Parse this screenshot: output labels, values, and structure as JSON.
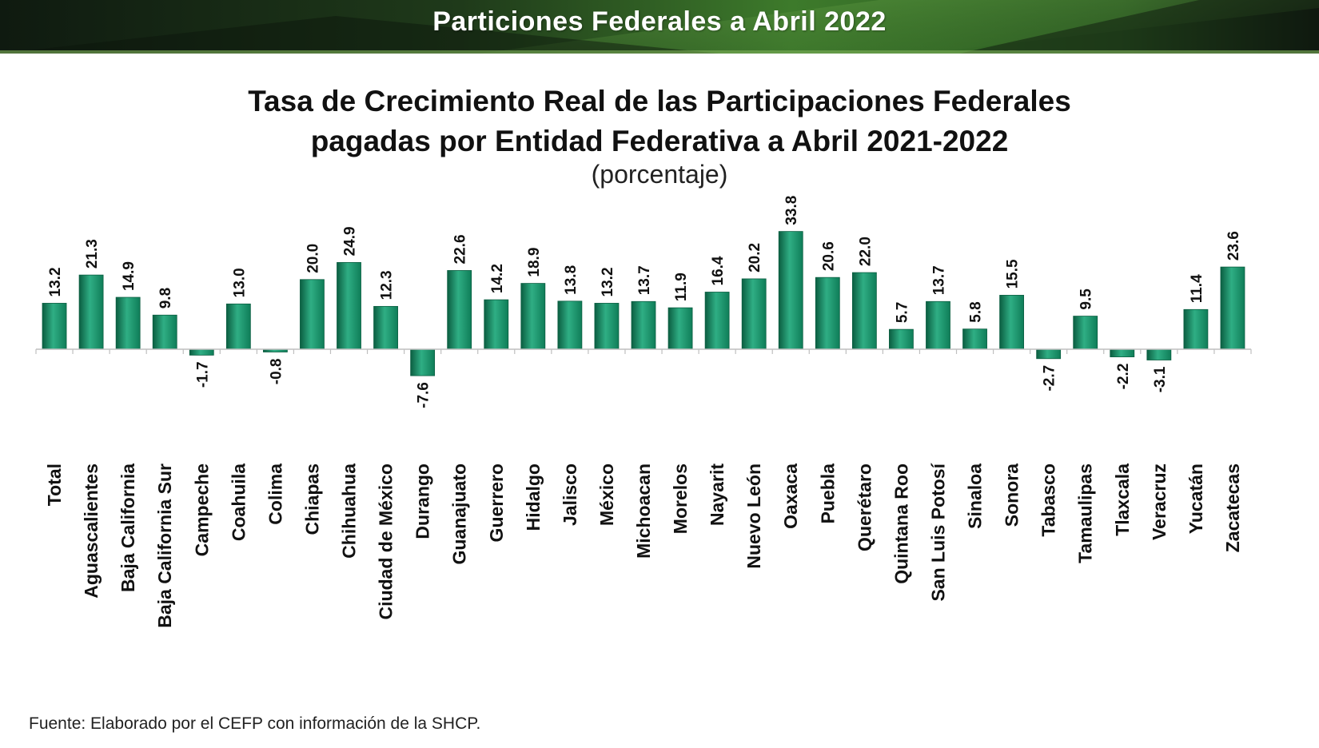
{
  "header": {
    "banner_title": "Particiones Federales a Abril 2022"
  },
  "colors": {
    "bar_light": "#2fae84",
    "bar_mid": "#0f7d58",
    "bar_dark": "#0b5e41",
    "banner_dark": "#1b2a1b",
    "banner_green": "#3f7d2c"
  },
  "footer": {
    "source": "Fuente: Elaborado por el CEFP con información de la SHCP."
  },
  "chart_data": {
    "type": "bar",
    "title_line1": "Tasa de Crecimiento Real de las Participaciones Federales",
    "title_line2": "pagadas por Entidad Federativa a Abril 2021-2022",
    "subtitle": "(porcentaje)",
    "xlabel": "",
    "ylabel": "",
    "ylim": [
      -12,
      36
    ],
    "grid": false,
    "categories": [
      "Total",
      "Aguascalientes",
      "Baja California",
      "Baja California Sur",
      "Campeche",
      "Coahuila",
      "Colima",
      "Chiapas",
      "Chihuahua",
      "Ciudad de México",
      "Durango",
      "Guanajuato",
      "Guerrero",
      "Hidalgo",
      "Jalisco",
      "México",
      "Michoacan",
      "Morelos",
      "Nayarit",
      "Nuevo León",
      "Oaxaca",
      "Puebla",
      "Querétaro",
      "Quintana Roo",
      "San Luis Potosí",
      "Sinaloa",
      "Sonora",
      "Tabasco",
      "Tamaulipas",
      "Tlaxcala",
      "Veracruz",
      "Yucatán",
      "Zacatecas"
    ],
    "values": [
      13.2,
      21.3,
      14.9,
      9.8,
      -1.7,
      13.0,
      -0.8,
      20.0,
      24.9,
      12.3,
      -7.6,
      22.6,
      14.2,
      18.9,
      13.8,
      13.2,
      13.7,
      11.9,
      16.4,
      20.2,
      33.8,
      20.6,
      22.0,
      5.7,
      13.7,
      5.8,
      15.5,
      -2.7,
      9.5,
      -2.2,
      -3.1,
      11.4,
      23.6
    ],
    "value_labels": [
      "13.2",
      "21.3",
      "14.9",
      "9.8",
      "-1.7",
      "13.0",
      "-0.8",
      "20.0",
      "24.9",
      "12.3",
      "-7.6",
      "22.6",
      "14.2",
      "18.9",
      "13.8",
      "13.2",
      "13.7",
      "11.9",
      "16.4",
      "20.2",
      "33.8",
      "20.6",
      "22.0",
      "5.7",
      "13.7",
      "5.8",
      "15.5",
      "-2.7",
      "9.5",
      "-2.2",
      "-3.1",
      "11.4",
      "23.6"
    ]
  }
}
